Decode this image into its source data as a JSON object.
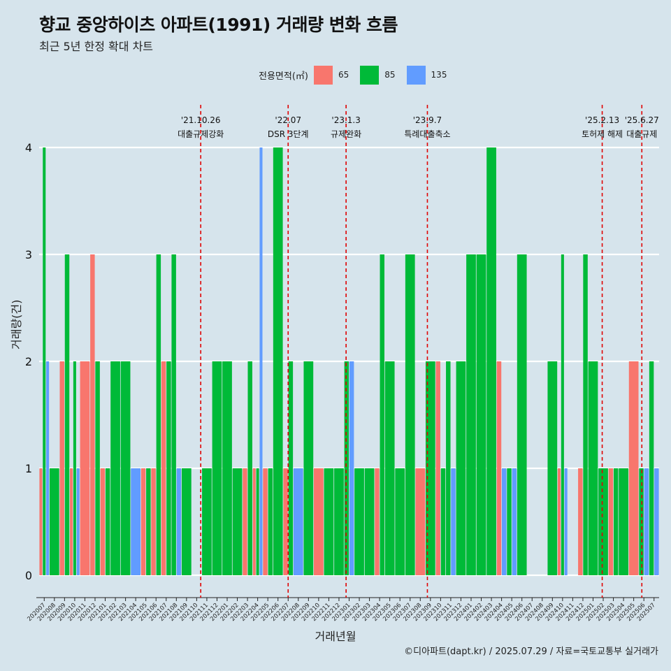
{
  "header": {
    "title": "향교 중앙하이츠 아파트(1991) 거래량 변화 흐름",
    "subtitle": "최근 5년 한정 확대 차트"
  },
  "legend": {
    "title": "전용면적(㎡)",
    "items": [
      {
        "label": "65",
        "color": "#f8766d"
      },
      {
        "label": "85",
        "color": "#00ba38"
      },
      {
        "label": "135",
        "color": "#619cff"
      }
    ]
  },
  "axes": {
    "xlabel": "거래년월",
    "ylabel": "거래량(건)"
  },
  "caption": "©디아파트(dapt.kr) / 2025.07.29 / 자료=국토교통부 실거래가",
  "chart_data": {
    "type": "bar",
    "stacking": "dodge",
    "grid": true,
    "ylim": [
      0,
      4
    ],
    "yticks": [
      0,
      1,
      2,
      3,
      4
    ],
    "categories": [
      "202007",
      "202008",
      "202009",
      "202010",
      "202011",
      "202012",
      "202101",
      "202102",
      "202103",
      "202104",
      "202105",
      "202106",
      "202107",
      "202108",
      "202109",
      "202110",
      "202111",
      "202112",
      "202201",
      "202202",
      "202203",
      "202204",
      "202205",
      "202206",
      "202207",
      "202208",
      "202209",
      "202210",
      "202211",
      "202212",
      "202301",
      "202302",
      "202303",
      "202304",
      "202305",
      "202306",
      "202307",
      "202308",
      "202309",
      "202310",
      "202311",
      "202312",
      "202401",
      "202402",
      "202403",
      "202404",
      "202405",
      "202406",
      "202407",
      "202408",
      "202409",
      "202410",
      "202411",
      "202412",
      "202501",
      "202502",
      "202503",
      "202504",
      "202505",
      "202506",
      "202507"
    ],
    "series": [
      {
        "name": "65",
        "color": "#f8766d",
        "values": [
          1,
          0,
          2,
          1,
          2,
          3,
          1,
          0,
          0,
          0,
          1,
          1,
          2,
          0,
          0,
          0,
          0,
          0,
          0,
          0,
          1,
          1,
          1,
          0,
          1,
          0,
          0,
          1,
          0,
          0,
          0,
          0,
          0,
          1,
          0,
          0,
          0,
          1,
          0,
          2,
          0,
          0,
          0,
          0,
          0,
          2,
          0,
          0,
          0,
          0,
          0,
          1,
          0,
          1,
          0,
          0,
          1,
          0,
          2,
          0,
          0
        ]
      },
      {
        "name": "85",
        "color": "#00ba38",
        "values": [
          4,
          1,
          3,
          2,
          0,
          2,
          1,
          2,
          2,
          0,
          1,
          3,
          2,
          3,
          1,
          0,
          1,
          2,
          2,
          1,
          2,
          1,
          1,
          4,
          2,
          0,
          2,
          0,
          1,
          1,
          2,
          1,
          1,
          3,
          2,
          1,
          3,
          0,
          2,
          1,
          2,
          2,
          3,
          3,
          4,
          0,
          1,
          3,
          0,
          0,
          2,
          3,
          0,
          3,
          2,
          1,
          1,
          1,
          0,
          1,
          2
        ]
      },
      {
        "name": "135",
        "color": "#619cff",
        "values": [
          2,
          0,
          0,
          1,
          0,
          0,
          0,
          0,
          0,
          1,
          0,
          0,
          0,
          1,
          0,
          0,
          0,
          0,
          0,
          0,
          0,
          4,
          0,
          0,
          0,
          1,
          0,
          0,
          0,
          0,
          2,
          0,
          0,
          0,
          0,
          0,
          0,
          0,
          0,
          0,
          1,
          0,
          0,
          0,
          0,
          1,
          1,
          0,
          0,
          0,
          0,
          1,
          0,
          0,
          0,
          0,
          0,
          0,
          0,
          1,
          1
        ]
      }
    ],
    "events": [
      {
        "date": "'21.10.26",
        "label": "대출규제강화",
        "month_index": 15.9
      },
      {
        "date": "'22.07",
        "label": "DSR 3단계",
        "month_index": 24.5
      },
      {
        "date": "'23.1.3",
        "label": "규제완화",
        "month_index": 30.2
      },
      {
        "date": "'23.9.7",
        "label": "특례대출축소",
        "month_index": 38.2
      },
      {
        "date": "'25.2.13",
        "label": "토허제 해제",
        "month_index": 55.4
      },
      {
        "date": "'25.6.27",
        "label": "대출규제",
        "month_index": 59.3
      }
    ]
  }
}
